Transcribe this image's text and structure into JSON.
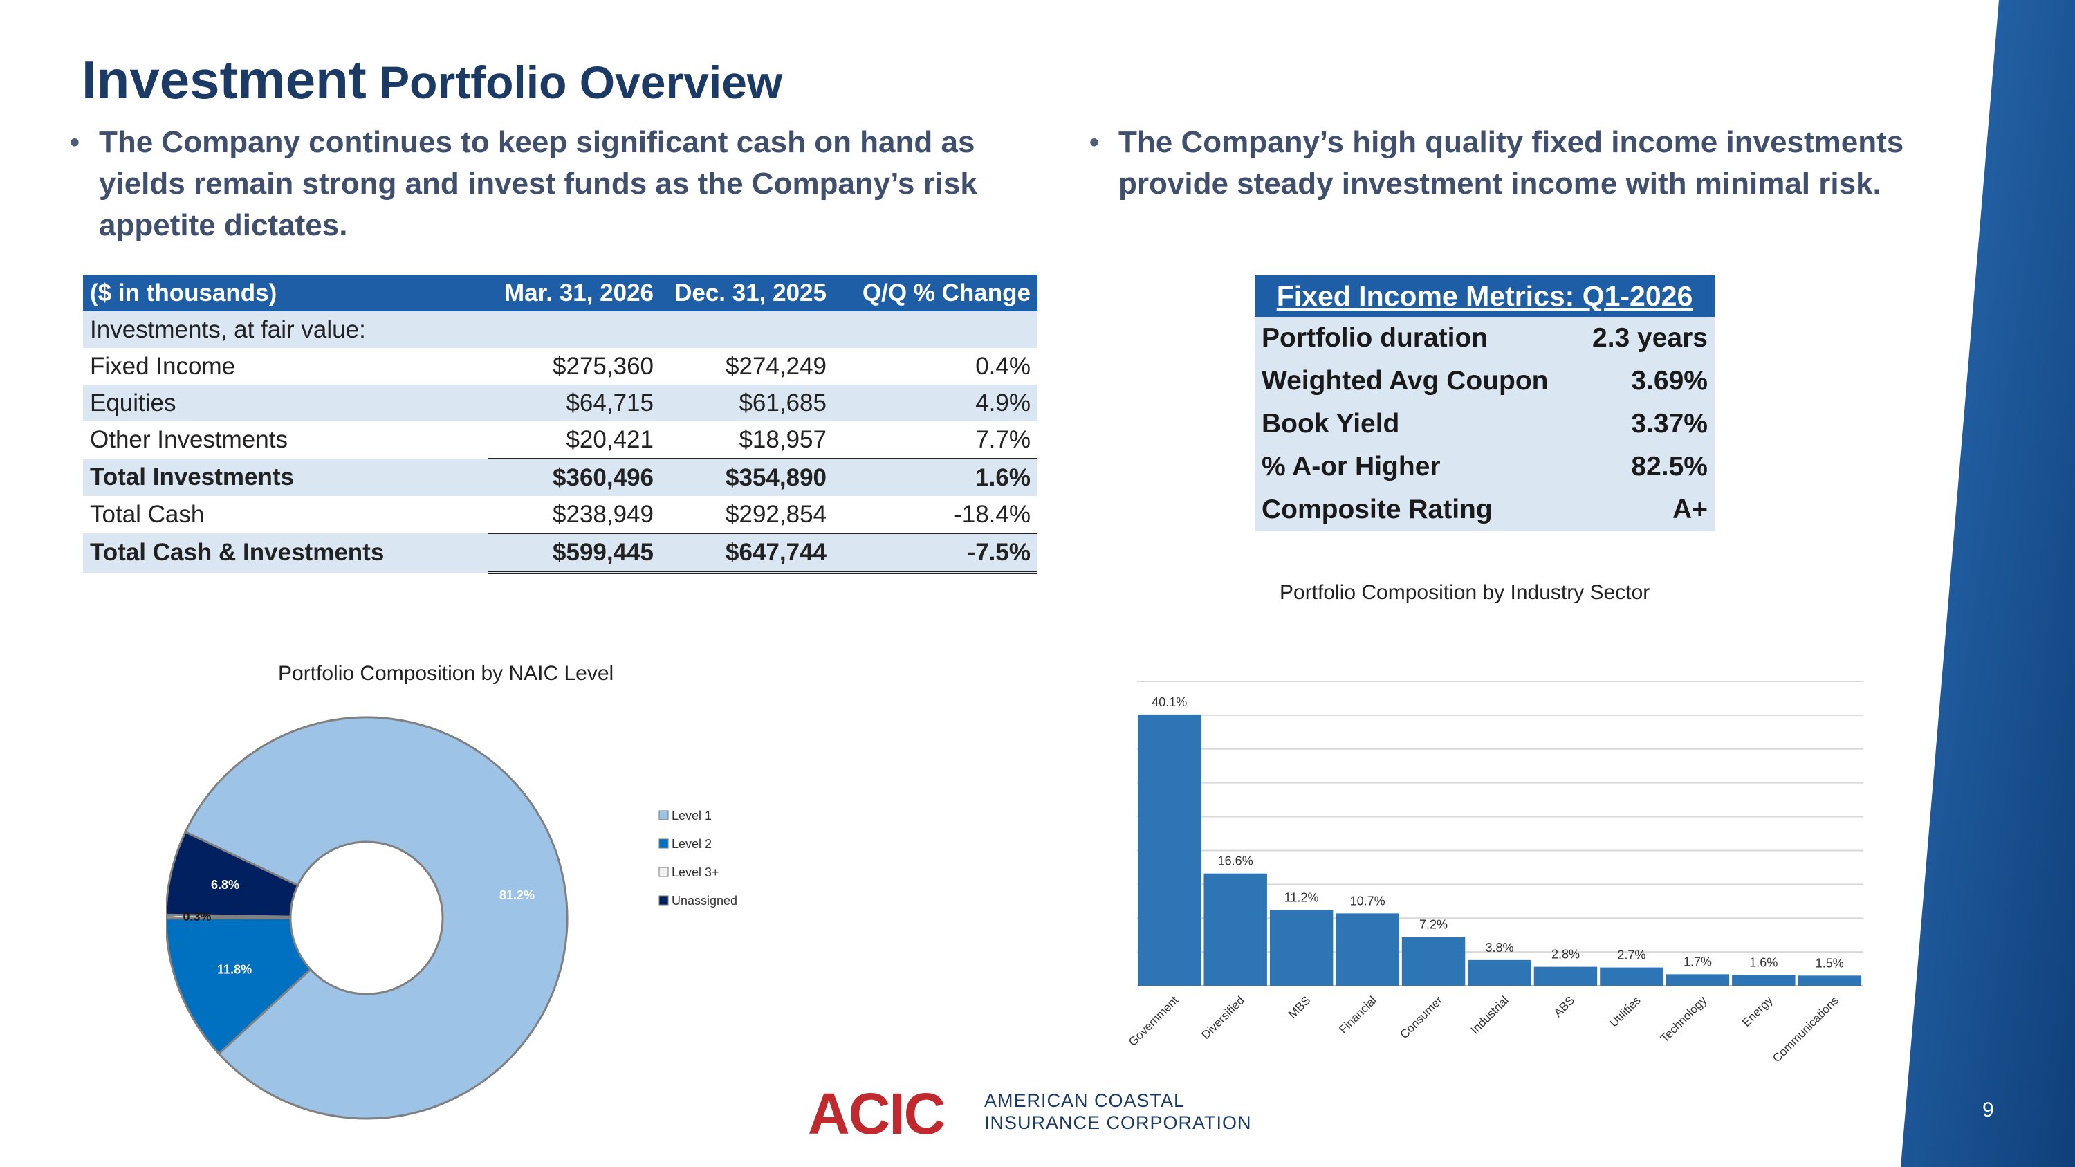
{
  "title": {
    "part1": "Investment",
    "part2": " Portfolio Overview"
  },
  "bullets": {
    "left": "The Company continues to keep significant cash on hand as yields remain strong and invest funds as the Company’s risk appetite dictates.",
    "right": "The Company’s high quality fixed income investments provide steady investment income with minimal risk.",
    "marker": "•"
  },
  "investments_table": {
    "headers": [
      "($ in thousands)",
      "Mar. 31, 2026",
      "Dec. 31, 2025",
      "Q/Q % Change"
    ],
    "section_label": "Investments, at fair value:",
    "rows": [
      {
        "label": "Fixed Income",
        "mar": "$275,360",
        "dec": "$274,249",
        "chg": "0.4%"
      },
      {
        "label": "Equities",
        "mar": "$64,715",
        "dec": "$61,685",
        "chg": "4.9%"
      },
      {
        "label": "Other Investments",
        "mar": "$20,421",
        "dec": "$18,957",
        "chg": "7.7%"
      },
      {
        "label": "Total Investments",
        "mar": "$360,496",
        "dec": "$354,890",
        "chg": "1.6%"
      },
      {
        "label": "Total Cash",
        "mar": "$238,949",
        "dec": "$292,854",
        "chg": "-18.4%"
      },
      {
        "label": "Total Cash & Investments",
        "mar": "$599,445",
        "dec": "$647,744",
        "chg": "-7.5%"
      }
    ]
  },
  "metrics_table": {
    "title": "Fixed Income Metrics: Q1-2026",
    "rows": [
      {
        "label": "Portfolio duration",
        "value": "2.3 years"
      },
      {
        "label": "Weighted Avg Coupon",
        "value": "3.69%"
      },
      {
        "label": "Book Yield",
        "value": "3.37%"
      },
      {
        "label": "% A-or Higher",
        "value": "82.5%"
      },
      {
        "label": "Composite Rating",
        "value": "A+"
      }
    ]
  },
  "colors": {
    "level1": "#9dc3e6",
    "level2": "#0070c0",
    "level3": "#f2f2f2",
    "unassigned": "#002060",
    "bar": "#2e75b6",
    "band": "#1e5ea6"
  },
  "chart_data": [
    {
      "type": "pie",
      "title": "Portfolio Composition by NAIC Level",
      "categories": [
        "Level 1",
        "Level 2",
        "Level 3+",
        "Unassigned"
      ],
      "values": [
        81.2,
        11.8,
        0.3,
        6.8
      ],
      "labels": [
        "81.2%",
        "11.8%",
        "0.3%",
        "6.8%"
      ],
      "legend": "right"
    },
    {
      "type": "bar",
      "title": "Portfolio Composition by Industry Sector",
      "categories": [
        "Government",
        "Diversified",
        "MBS",
        "Financial",
        "Consumer",
        "Industrial",
        "ABS",
        "Utilities",
        "Technology",
        "Energy",
        "Communications"
      ],
      "values": [
        40.1,
        16.6,
        11.2,
        10.7,
        7.2,
        3.8,
        2.8,
        2.7,
        1.7,
        1.6,
        1.5
      ],
      "labels": [
        "40.1%",
        "16.6%",
        "11.2%",
        "10.7%",
        "7.2%",
        "3.8%",
        "2.8%",
        "2.7%",
        "1.7%",
        "1.6%",
        "1.5%"
      ],
      "ylim": [
        0,
        45
      ],
      "grid": true
    }
  ],
  "logo": {
    "mark": "ACIC",
    "line1": "AMERICAN COASTAL",
    "line2": "INSURANCE CORPORATION"
  },
  "page_number": "9"
}
